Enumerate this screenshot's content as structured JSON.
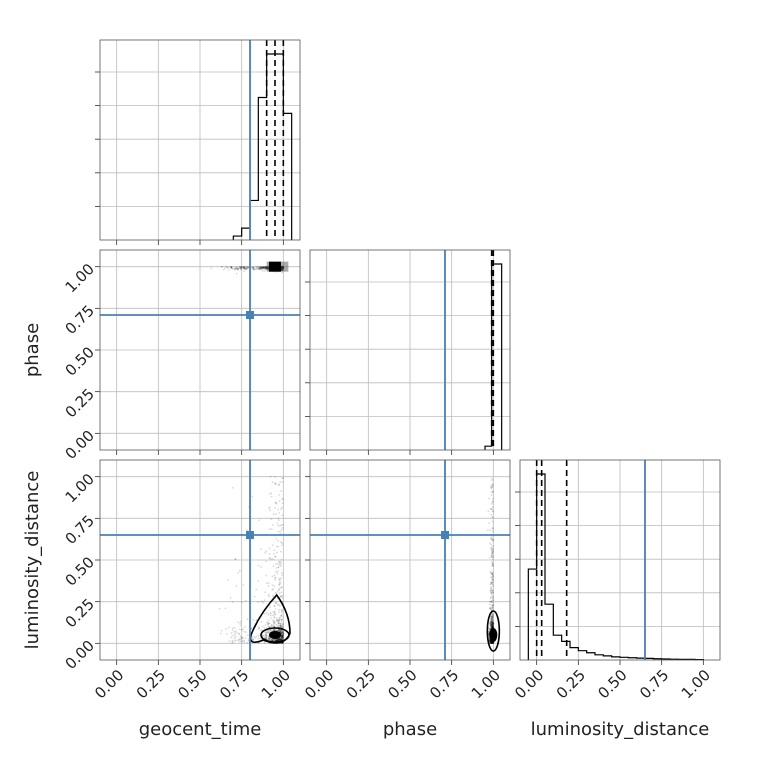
{
  "chart_data": {
    "type": "corner",
    "parameters": [
      "geocent_time",
      "phase",
      "luminosity_distance"
    ],
    "tick_labels": [
      "0.00",
      "0.25",
      "0.50",
      "0.75",
      "1.00"
    ],
    "range": [
      -0.1,
      1.1
    ],
    "truth_color": "#4682b4",
    "truths": {
      "geocent_time": 0.8,
      "phase": 0.71,
      "luminosity_distance": 0.65
    },
    "grid": true,
    "histograms": [
      {
        "param": "geocent_time",
        "bin_edges": [
          0.7,
          0.75,
          0.8,
          0.85,
          0.9,
          0.95,
          1.0,
          1.05
        ],
        "counts": [
          0.01,
          0.03,
          0.1,
          0.36,
          0.47,
          0.47,
          0.32
        ],
        "quantiles": [
          0.9,
          0.95,
          1.0
        ]
      },
      {
        "param": "phase",
        "bin_edges": [
          0.95,
          0.99,
          1.05
        ],
        "counts": [
          0.02,
          0.98
        ],
        "quantiles": [
          0.99,
          1.0
        ]
      },
      {
        "param": "luminosity_distance",
        "bin_edges": [
          -0.05,
          0.0,
          0.05,
          0.1,
          0.15,
          0.2,
          0.25,
          0.3,
          0.35,
          0.4,
          0.45,
          0.5,
          0.55,
          0.6,
          0.65,
          0.7,
          0.75,
          0.8,
          0.85,
          0.9,
          0.95,
          1.0
        ],
        "counts": [
          0.44,
          0.9,
          0.27,
          0.12,
          0.09,
          0.06,
          0.045,
          0.035,
          0.025,
          0.02,
          0.015,
          0.013,
          0.011,
          0.009,
          0.008,
          0.006,
          0.005,
          0.004,
          0.003,
          0.003,
          0.002
        ],
        "quantiles": [
          0.0,
          0.03,
          0.18
        ]
      }
    ]
  }
}
